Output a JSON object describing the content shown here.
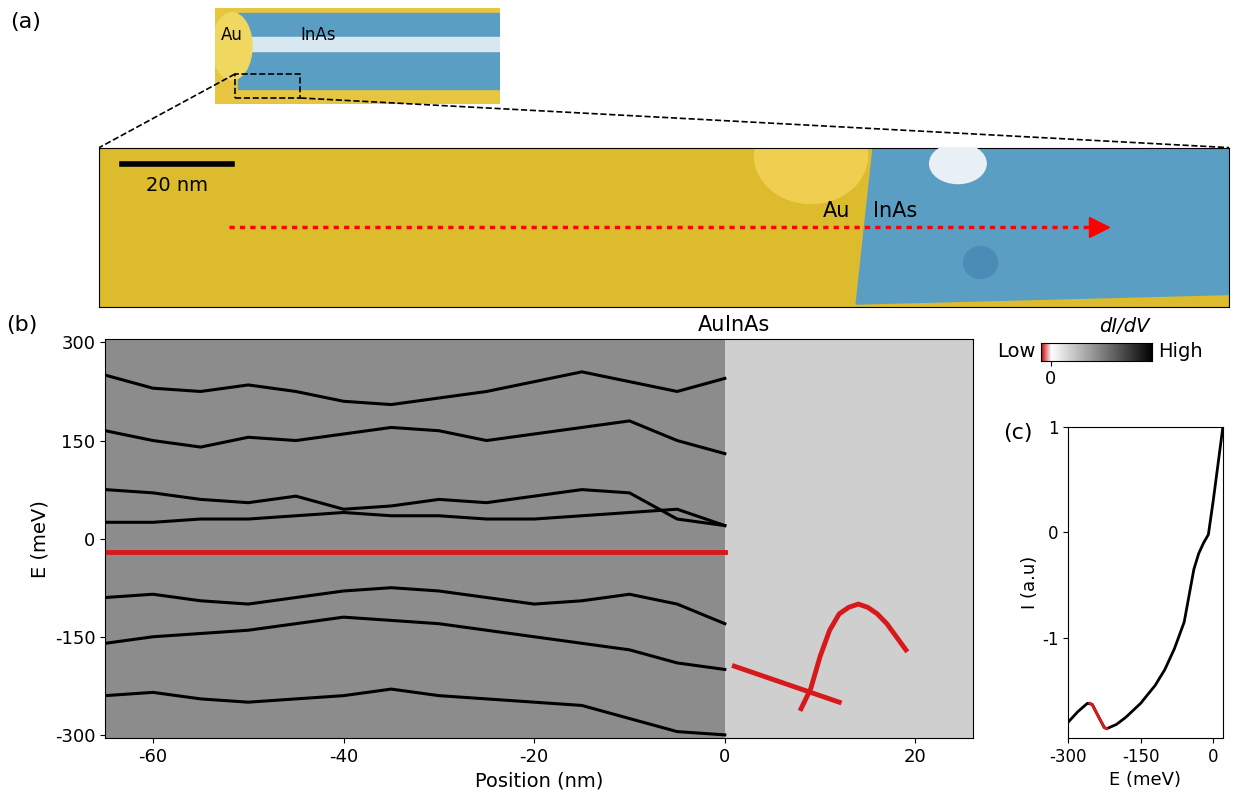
{
  "chart_data": [
    {
      "type": "image",
      "panel_label": "(a)",
      "inset_labels": [
        "Au",
        "InAs"
      ],
      "labels": [
        "Au",
        "InAs"
      ],
      "scale_bar": {
        "label": "20 nm",
        "length": 20
      },
      "xlim": [
        0,
        205
      ],
      "ylim": [
        0,
        30
      ],
      "tick_labels": false
    },
    {
      "type": "line",
      "panel_label": "(b)",
      "xlabel": "Position (nm)",
      "ylabel": "E (meV)",
      "xlim": [
        -65,
        26
      ],
      "ylim": [
        -305,
        305
      ],
      "xticks": [
        -60,
        -40,
        -20,
        0,
        20
      ],
      "yticks": [
        -300,
        -150,
        0,
        150,
        300
      ],
      "regions": [
        {
          "label": "Au",
          "range": [
            -65,
            0
          ]
        },
        {
          "label": "InAs",
          "range": [
            0,
            26
          ]
        }
      ],
      "series": [
        {
          "color": "#000000",
          "x": [
            -65,
            -60,
            -55,
            -50,
            -45,
            -40,
            -35,
            -30,
            -25,
            -20,
            -15,
            -10,
            -5,
            0
          ],
          "values": [
            250,
            230,
            225,
            235,
            225,
            210,
            205,
            215,
            225,
            240,
            255,
            240,
            225,
            245
          ]
        },
        {
          "color": "#000000",
          "x": [
            -65,
            -60,
            -55,
            -50,
            -45,
            -40,
            -35,
            -30,
            -25,
            -20,
            -15,
            -10,
            -5,
            0
          ],
          "values": [
            165,
            150,
            140,
            155,
            150,
            160,
            170,
            165,
            150,
            160,
            170,
            180,
            150,
            130
          ]
        },
        {
          "color": "#000000",
          "x": [
            -65,
            -60,
            -55,
            -50,
            -45,
            -40,
            -35,
            -30,
            -25,
            -20,
            -15,
            -10,
            -5,
            0
          ],
          "values": [
            75,
            70,
            60,
            55,
            65,
            45,
            50,
            60,
            55,
            65,
            75,
            70,
            30,
            20
          ]
        },
        {
          "color": "#000000",
          "x": [
            -65,
            -60,
            -55,
            -50,
            -45,
            -40,
            -35,
            -30,
            -25,
            -20,
            -15,
            -10,
            -5,
            0
          ],
          "values": [
            25,
            25,
            30,
            30,
            35,
            40,
            35,
            35,
            30,
            30,
            35,
            40,
            45,
            20
          ]
        },
        {
          "color": "#000000",
          "x": [
            -65,
            -60,
            -55,
            -50,
            -45,
            -40,
            -35,
            -30,
            -25,
            -20,
            -15,
            -10,
            -5,
            0
          ],
          "values": [
            -90,
            -85,
            -95,
            -100,
            -90,
            -80,
            -75,
            -80,
            -90,
            -100,
            -95,
            -85,
            -100,
            -130
          ]
        },
        {
          "color": "#000000",
          "x": [
            -65,
            -60,
            -55,
            -50,
            -45,
            -40,
            -35,
            -30,
            -25,
            -20,
            -15,
            -10,
            -5,
            0
          ],
          "values": [
            -160,
            -150,
            -145,
            -140,
            -130,
            -120,
            -125,
            -130,
            -140,
            -150,
            -160,
            -170,
            -190,
            -200
          ]
        },
        {
          "color": "#000000",
          "x": [
            -65,
            -60,
            -55,
            -50,
            -45,
            -40,
            -35,
            -30,
            -25,
            -20,
            -15,
            -10,
            -5,
            0
          ],
          "values": [
            -240,
            -235,
            -245,
            -250,
            -245,
            -240,
            -230,
            -240,
            -245,
            -250,
            -255,
            -275,
            -295,
            -300
          ]
        },
        {
          "color": "#d7191c",
          "x": [
            -65,
            0
          ],
          "values": [
            -20,
            -20
          ]
        },
        {
          "color": "#d7191c",
          "x": [
            1,
            12
          ],
          "values": [
            -195,
            -250
          ]
        },
        {
          "color": "#d7191c",
          "x": [
            8,
            9,
            10,
            11,
            12,
            13,
            14,
            15,
            16,
            17,
            18,
            19
          ],
          "values": [
            -260,
            -230,
            -180,
            -140,
            -115,
            -105,
            -100,
            -105,
            -115,
            -130,
            -150,
            -170
          ]
        }
      ],
      "colorbar": {
        "label": "dI/dV",
        "range": [
          -0.1,
          1
        ],
        "ticks": [
          0
        ],
        "low_label": "Low",
        "high_label": "High"
      }
    },
    {
      "type": "line",
      "panel_label": "(c)",
      "xlabel": "E (meV)",
      "ylabel": "I (a.u)",
      "xlim": [
        -300,
        20
      ],
      "ylim": [
        -1.95,
        1
      ],
      "xticks": [
        -300,
        -150,
        0
      ],
      "yticks": [
        -1,
        0,
        1
      ],
      "series": [
        {
          "color": "#000000",
          "x": [
            -300,
            -280,
            -260,
            -250,
            -240,
            -225,
            -220,
            -200,
            -180,
            -150,
            -120,
            -100,
            -80,
            -60,
            -50,
            -40,
            -30,
            -20,
            -10,
            0,
            10,
            20
          ],
          "values": [
            -1.8,
            -1.7,
            -1.62,
            -1.63,
            -1.72,
            -1.85,
            -1.86,
            -1.82,
            -1.75,
            -1.62,
            -1.45,
            -1.3,
            -1.1,
            -0.85,
            -0.6,
            -0.35,
            -0.2,
            -0.1,
            -0.02,
            0.3,
            0.65,
            1.0
          ]
        },
        {
          "color": "#d7191c",
          "x": [
            -255,
            -250,
            -240,
            -225,
            -220
          ],
          "values": [
            -1.62,
            -1.63,
            -1.72,
            -1.85,
            -1.86
          ]
        }
      ]
    }
  ]
}
